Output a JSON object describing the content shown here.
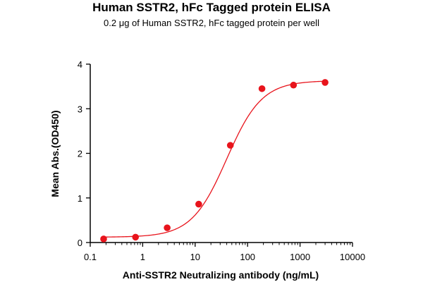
{
  "chart_data": {
    "type": "scatter",
    "title": "Human SSTR2, hFc Tagged protein ELISA",
    "subtitle": "0.2 μg of Human SSTR2, hFc tagged protein per well",
    "xlabel": "Anti-SSTR2 Neutralizing antibody (ng/mL)",
    "ylabel": "Mean Abs.(OD450)",
    "xscale": "log",
    "xlim": [
      0.1,
      10000
    ],
    "ylim": [
      0,
      4
    ],
    "xticks": [
      0.1,
      1,
      10,
      100,
      1000,
      10000
    ],
    "xtick_labels": [
      "0.1",
      "1",
      "10",
      "100",
      "1000",
      "10000"
    ],
    "yticks": [
      0,
      1,
      2,
      3,
      4
    ],
    "ytick_labels": [
      "0",
      "1",
      "2",
      "3",
      "4"
    ],
    "grid": false,
    "legend": "none",
    "series": [
      {
        "x": [
          0.18,
          0.73,
          2.93,
          11.7,
          46.9,
          188,
          750,
          3000
        ],
        "y": [
          0.08,
          0.12,
          0.33,
          0.86,
          2.18,
          3.45,
          3.53,
          3.59
        ],
        "color": "#e8141c",
        "marker": "circle"
      }
    ],
    "fit_curve": {
      "model": "4PL",
      "bottom": 0.12,
      "top": 3.63,
      "ec50": 40,
      "hill": 1.3,
      "color": "#e8141c"
    }
  }
}
